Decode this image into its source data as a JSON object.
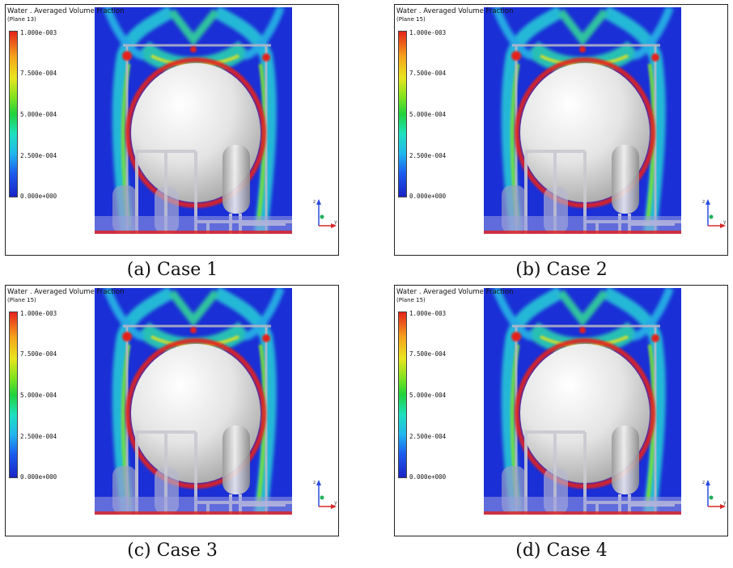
{
  "panels": [
    {
      "legend_title": "Water . Averaged  Volume Fraction",
      "plane": "(Plane  13)",
      "ticks": [
        "1.000e-003",
        "7.500e-004",
        "5.000e-004",
        "2.500e-004",
        "0.000e+000"
      ],
      "caption": "(a)  Case  1"
    },
    {
      "legend_title": "Water . Averaged  Volume Fraction",
      "plane": "(Plane  15)",
      "ticks": [
        "1.000e-003",
        "7.500e-004",
        "5.000e-004",
        "2.500e-004",
        "0.000e+000"
      ],
      "caption": "(b)  Case  2"
    },
    {
      "legend_title": "Water . Averaged  Volume Fraction",
      "plane": "(Plane  15)",
      "ticks": [
        "1.000e-003",
        "7.500e-004",
        "5.000e-004",
        "2.500e-004",
        "0.000e+000"
      ],
      "caption": "(c)  Case  3"
    },
    {
      "legend_title": "Water . Averaged  Volume Fraction",
      "plane": "(Plane  15)",
      "ticks": [
        "1.000e-003",
        "7.500e-004",
        "5.000e-004",
        "2.500e-004",
        "0.000e+000"
      ],
      "caption": "(d)  Case  4"
    }
  ],
  "axis_labels": {
    "z": "z",
    "y": "y"
  },
  "colors": {
    "background_field": "#1a2fd6",
    "max": "#e4221b",
    "min": "#1a23c6",
    "sphere": "#e6e6e6"
  }
}
